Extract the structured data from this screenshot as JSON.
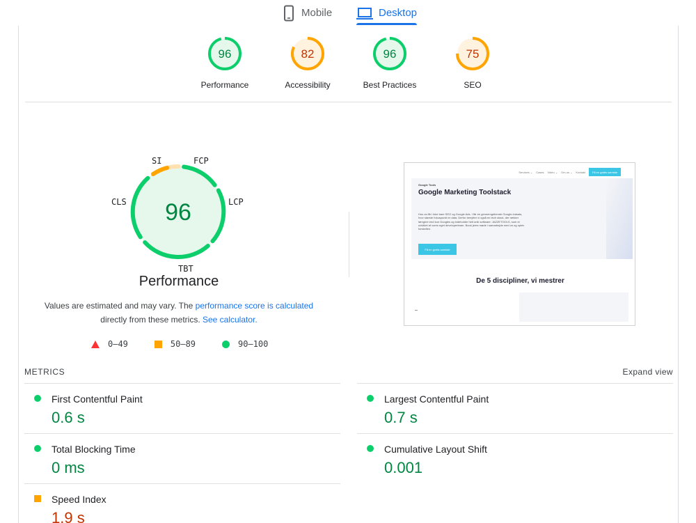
{
  "tabs": {
    "mobile": "Mobile",
    "desktop": "Desktop",
    "active": "desktop"
  },
  "categories": [
    {
      "label": "Performance",
      "score": "96",
      "status": "pass"
    },
    {
      "label": "Accessibility",
      "score": "82",
      "status": "average"
    },
    {
      "label": "Best Practices",
      "score": "96",
      "status": "pass"
    },
    {
      "label": "SEO",
      "score": "75",
      "status": "average"
    }
  ],
  "performance": {
    "score": "96",
    "title": "Performance",
    "metric_tags": {
      "si": "SI",
      "fcp": "FCP",
      "lcp": "LCP",
      "tbt": "TBT",
      "cls": "CLS"
    },
    "note_prefix": "Values are estimated and may vary. The ",
    "note_link": "performance score is calculated",
    "note_middle": " directly from these metrics. ",
    "note_link2": "See calculator.",
    "legend": {
      "fail": "0–49",
      "average": "50–89",
      "pass": "90–100"
    }
  },
  "screenshot": {
    "nav_items": [
      "Services ⌄",
      "Cases",
      "Video ⌄",
      "Om os ⌄",
      "Kontakt"
    ],
    "nav_cta": "Få en gratis samtale",
    "eyebrow": "Google Tools",
    "title": "Google Marketing Toolstack",
    "body": "Hos os får i ikke bare SEO og Google Ads. I får en gennemgribende Google-indsats, hvor største fokuspunkt er data. Derfor benytter vi også en tech stack, der rækker længere end kun Googles og indeholder helt unik software: JAZZETOOLS, som er udviklet af vores eget developerteam. Book jeres møde i samarbejde med os og oplev forskellen.",
    "button": "Få en gratis samtale",
    "section_heading": "De 5 discipliner, vi mestrer"
  },
  "metrics": {
    "title": "METRICS",
    "expand": "Expand view",
    "items": [
      {
        "name": "First Contentful Paint",
        "value": "0.6 s",
        "status": "pass"
      },
      {
        "name": "Largest Contentful Paint",
        "value": "0.7 s",
        "status": "pass"
      },
      {
        "name": "Total Blocking Time",
        "value": "0 ms",
        "status": "pass"
      },
      {
        "name": "Cumulative Layout Shift",
        "value": "0.001",
        "status": "pass"
      },
      {
        "name": "Speed Index",
        "value": "1.9 s",
        "status": "average"
      }
    ]
  },
  "colors": {
    "pass": "#0cce6b",
    "average": "#ffa400",
    "fail": "#ff3333",
    "pass_text": "#018642",
    "average_text": "#c33300",
    "link": "#1a73e8"
  }
}
